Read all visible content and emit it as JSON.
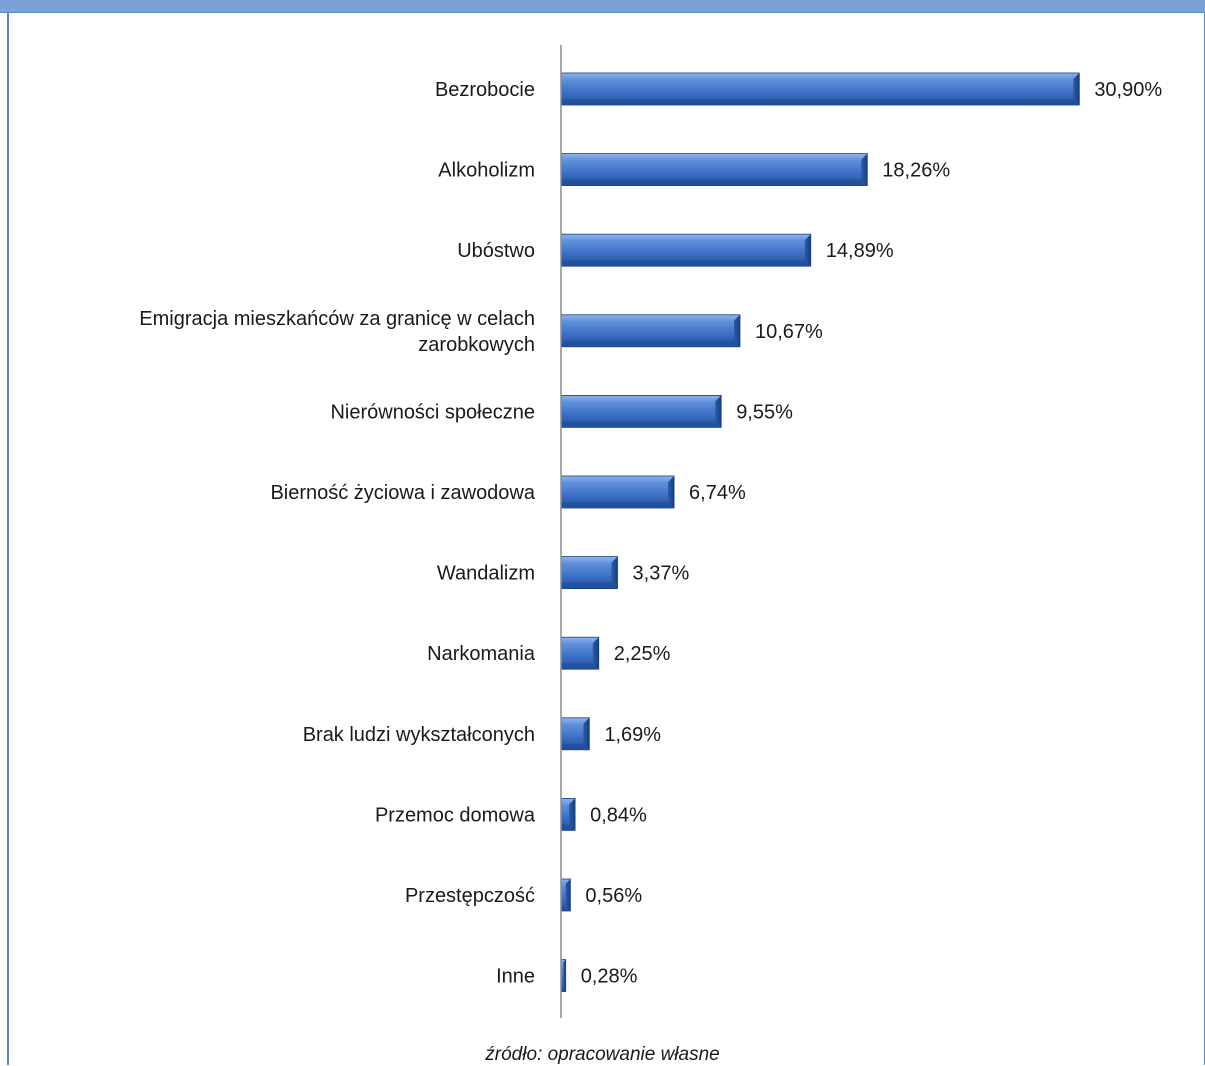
{
  "source_note": "źródło: opracowanie własne",
  "chart_data": {
    "type": "bar",
    "orientation": "horizontal",
    "title": "",
    "xlabel": "",
    "ylabel": "",
    "xlim": [
      0,
      31
    ],
    "grid": false,
    "categories": [
      "Bezrobocie",
      "Alkoholizm",
      "Ubóstwo",
      "Emigracja mieszkańców za granicę w celach zarobkowych",
      "Nierówności społeczne",
      "Bierność życiowa i zawodowa",
      "Wandalizm",
      "Narkomania",
      "Brak ludzi wykształconych",
      "Przemoc domowa",
      "Przestępczość",
      "Inne"
    ],
    "category_lines": [
      [
        "Bezrobocie"
      ],
      [
        "Alkoholizm"
      ],
      [
        "Ubóstwo"
      ],
      [
        "Emigracja mieszkańców za granicę w celach",
        "zarobkowych"
      ],
      [
        "Nierówności społeczne"
      ],
      [
        "Bierność życiowa i zawodowa"
      ],
      [
        "Wandalizm"
      ],
      [
        "Narkomania"
      ],
      [
        "Brak ludzi wykształconych"
      ],
      [
        "Przemoc domowa"
      ],
      [
        "Przestępczość"
      ],
      [
        "Inne"
      ]
    ],
    "values": [
      30.9,
      18.26,
      14.89,
      10.67,
      9.55,
      6.74,
      3.37,
      2.25,
      1.69,
      0.84,
      0.56,
      0.28
    ],
    "value_labels": [
      "30,90%",
      "18,26%",
      "14,89%",
      "10,67%",
      "9,55%",
      "6,74%",
      "3,37%",
      "2,25%",
      "1,69%",
      "0,84%",
      "0,56%",
      "0,28%"
    ],
    "colors": {
      "bar_light": "#6f9be0",
      "bar_mid": "#3f73c8",
      "bar_dark": "#1f4f9c",
      "bar_edge": "#173f80",
      "axis": "#8c8c8c"
    }
  }
}
